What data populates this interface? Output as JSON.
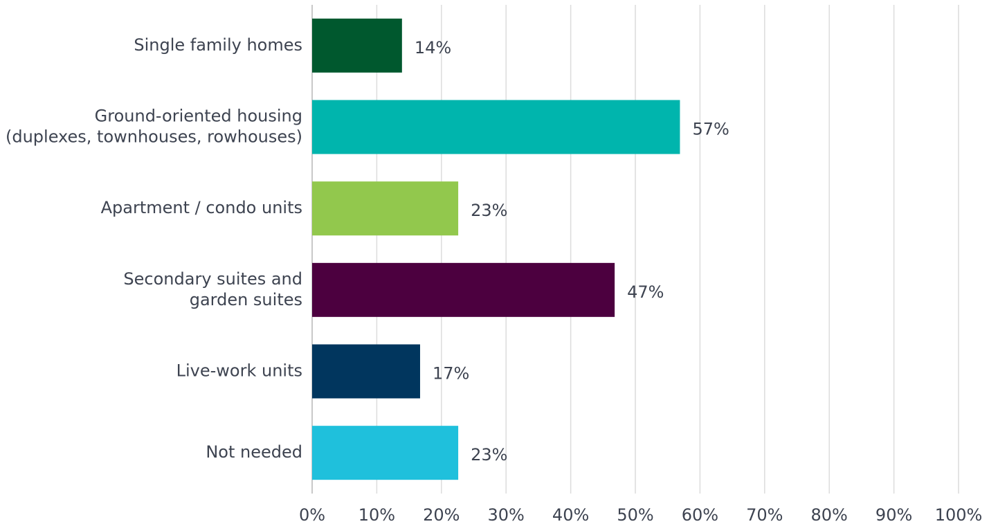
{
  "chart_data": {
    "type": "bar",
    "orientation": "horizontal",
    "categories": [
      "Single family homes",
      "Ground-oriented housing\n(duplexes, townhouses, rowhouses)",
      "Apartment / condo units",
      "Secondary suites and\ngarden suites",
      "Live-work units",
      "Not needed"
    ],
    "values": [
      13.9,
      56.9,
      22.6,
      46.8,
      16.7,
      22.6
    ],
    "value_labels": [
      "14%",
      "57%",
      "23%",
      "47%",
      "17%",
      "23%"
    ],
    "colors": [
      "#00582e",
      "#00b5ad",
      "#92c84d",
      "#4c003f",
      "#01365e",
      "#1fc0dc"
    ],
    "xlim": [
      0,
      100
    ],
    "xticks": [
      {
        "value": 0,
        "label": "0%"
      },
      {
        "value": 10,
        "label": "10%"
      },
      {
        "value": 20,
        "label": "20%"
      },
      {
        "value": 30,
        "label": "30%"
      },
      {
        "value": 40,
        "label": "40%"
      },
      {
        "value": 50,
        "label": "50%"
      },
      {
        "value": 60,
        "label": "60%"
      },
      {
        "value": 70,
        "label": "70%"
      },
      {
        "value": 80,
        "label": "80%"
      },
      {
        "value": 90,
        "label": "90%"
      },
      {
        "value": 100,
        "label": "100%"
      }
    ],
    "grid": true
  }
}
